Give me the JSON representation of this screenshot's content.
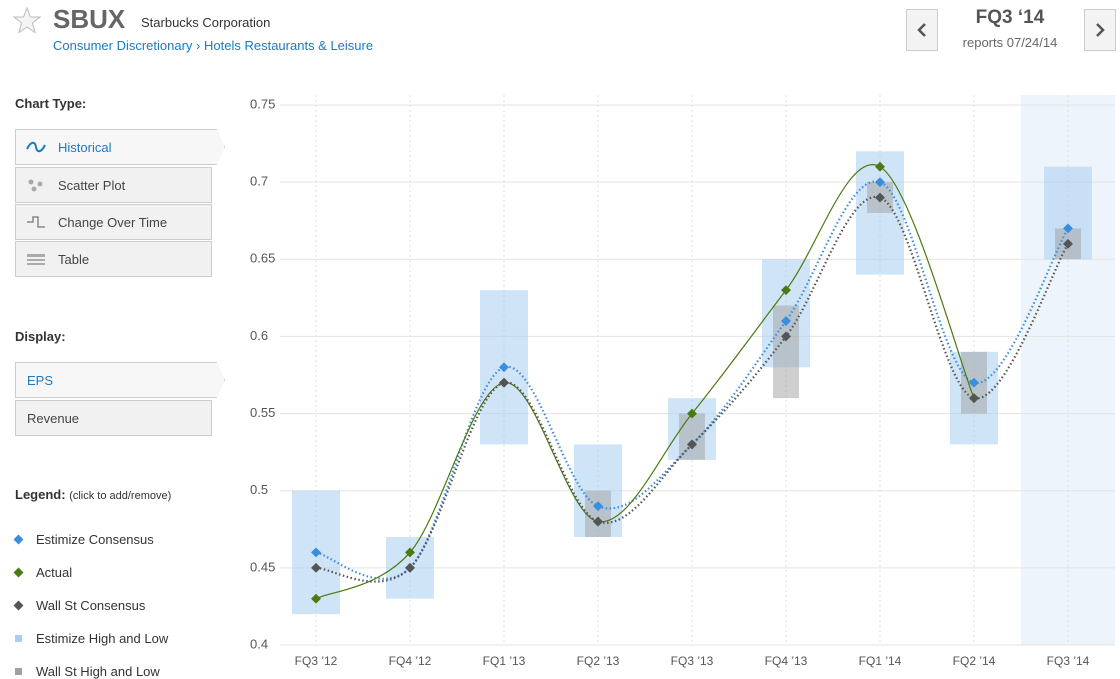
{
  "header": {
    "ticker": "SBUX",
    "company": "Starbucks Corporation",
    "sector": "Consumer Discretionary",
    "industry": "Hotels Restaurants & Leisure",
    "period": "FQ3 ‘14",
    "reports": "reports 07/24/14"
  },
  "sidebar": {
    "chart_type_label": "Chart Type:",
    "chart_types": [
      "Historical",
      "Scatter Plot",
      "Change Over Time",
      "Table"
    ],
    "display_label": "Display:",
    "displays": [
      "EPS",
      "Revenue"
    ],
    "legend_label": "Legend:",
    "legend_hint": "(click to add/remove)"
  },
  "chart_data": {
    "type": "line",
    "categories": [
      "FQ3 ’12",
      "FQ4 ’12",
      "FQ1 ’13",
      "FQ2 ’13",
      "FQ3 ’13",
      "FQ4 ’13",
      "FQ1 ’14",
      "FQ2 ’14",
      "FQ3 ’14"
    ],
    "ylim": [
      0.4,
      0.75
    ],
    "yticks": [
      0.4,
      0.45,
      0.5,
      0.55,
      0.6,
      0.65,
      0.7,
      0.75
    ],
    "grid": true,
    "series": [
      {
        "name": "Estimize Consensus",
        "color": "#3a8ede",
        "style": "dotted",
        "values": [
          0.46,
          0.45,
          0.58,
          0.49,
          0.53,
          0.61,
          0.7,
          0.57,
          0.67
        ]
      },
      {
        "name": "Actual",
        "color": "#4a7a12",
        "style": "solid",
        "values": [
          0.43,
          0.46,
          0.57,
          0.48,
          0.55,
          0.63,
          0.71,
          0.56,
          null
        ]
      },
      {
        "name": "Wall St Consensus",
        "color": "#555555",
        "style": "dotted",
        "values": [
          0.45,
          0.45,
          0.57,
          0.48,
          0.53,
          0.6,
          0.69,
          0.56,
          0.66
        ]
      },
      {
        "name": "Estimize High and Low",
        "color": "#a9cdf0",
        "style": "range",
        "high": [
          0.5,
          0.47,
          0.63,
          0.53,
          0.56,
          0.65,
          0.72,
          0.59,
          0.71
        ],
        "low": [
          0.42,
          0.43,
          0.53,
          0.47,
          0.52,
          0.58,
          0.64,
          0.53,
          0.65
        ]
      },
      {
        "name": "Wall St High and Low",
        "color": "#a0a0a0",
        "style": "range",
        "high": [
          null,
          null,
          null,
          0.5,
          0.55,
          0.62,
          0.7,
          0.59,
          0.67
        ],
        "low": [
          null,
          null,
          null,
          0.47,
          0.52,
          0.56,
          0.68,
          0.55,
          0.65
        ]
      }
    ]
  }
}
